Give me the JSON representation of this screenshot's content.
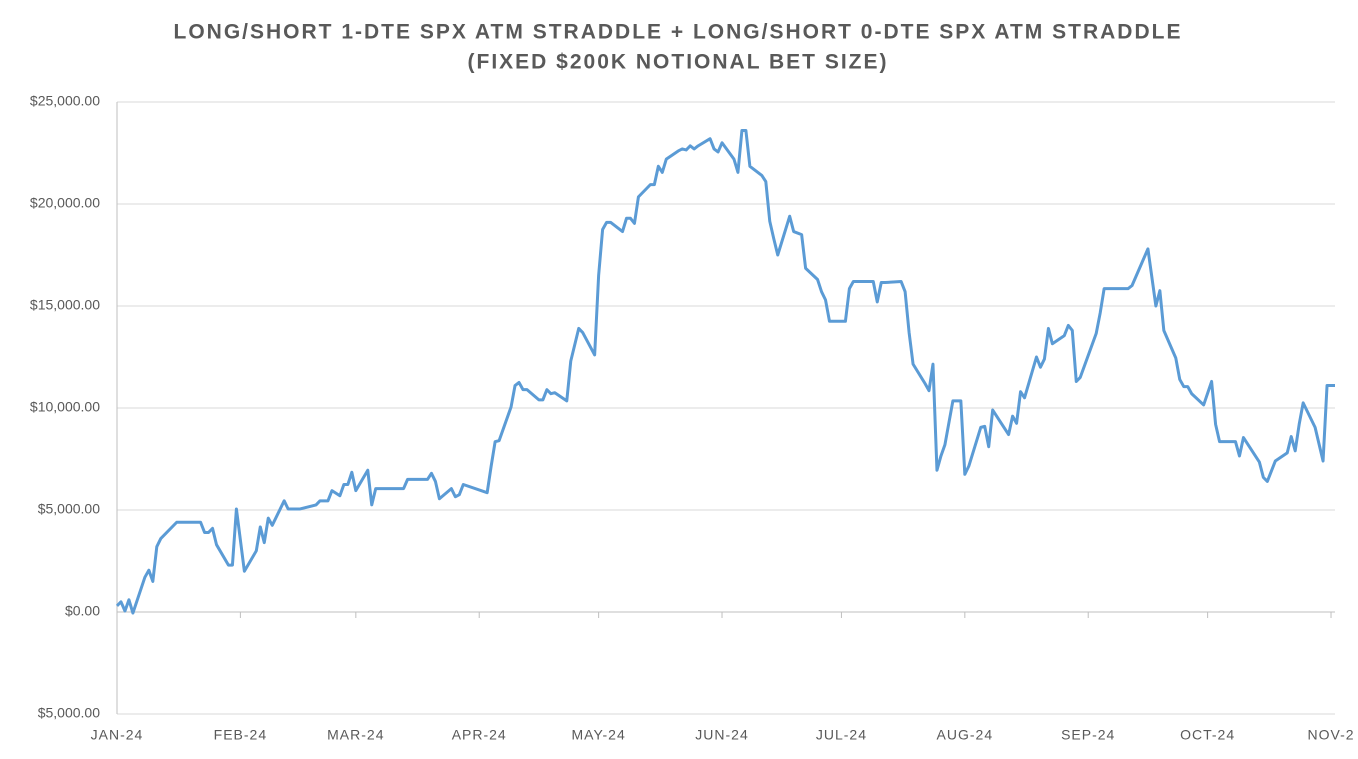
{
  "chart_data": {
    "type": "line",
    "title": "LONG/SHORT 1-DTE SPX ATM STRADDLE + LONG/SHORT 0-DTE SPX ATM STRADDLE",
    "subtitle": "(FIXED $200K NOTIONAL BET SIZE)",
    "color": "#5b9bd5",
    "negative_tick_color": "#c00000",
    "grid": true,
    "xlim": [
      0,
      306
    ],
    "xticks": [
      {
        "value": 0,
        "label": "JAN-24"
      },
      {
        "value": 31,
        "label": "FEB-24"
      },
      {
        "value": 60,
        "label": "MAR-24"
      },
      {
        "value": 91,
        "label": "APR-24"
      },
      {
        "value": 121,
        "label": "MAY-24"
      },
      {
        "value": 152,
        "label": "JUN-24"
      },
      {
        "value": 182,
        "label": "JUL-24"
      },
      {
        "value": 213,
        "label": "AUG-24"
      },
      {
        "value": 244,
        "label": "SEP-24"
      },
      {
        "value": 274,
        "label": "OCT-24"
      },
      {
        "value": 305,
        "label": "NOV-2"
      }
    ],
    "ylim": [
      -5000,
      25000
    ],
    "yticks": [
      {
        "value": -5000,
        "label": "$5,000.00"
      },
      {
        "value": 0,
        "label": "$0.00"
      },
      {
        "value": 5000,
        "label": "$5,000.00"
      },
      {
        "value": 10000,
        "label": "$10,000.00"
      },
      {
        "value": 15000,
        "label": "$15,000.00"
      },
      {
        "value": 20000,
        "label": "$20,000.00"
      },
      {
        "value": 25000,
        "label": "$25,000.00"
      }
    ],
    "x": [
      0,
      1,
      2,
      3,
      4,
      7,
      8,
      9,
      10,
      11,
      15,
      21,
      22,
      23,
      24,
      25,
      28,
      29,
      30,
      32,
      35,
      36,
      37,
      38,
      39,
      42,
      43,
      46,
      50,
      51,
      53,
      54,
      56,
      57,
      58,
      59,
      60,
      63,
      64,
      65,
      72,
      73,
      78,
      79,
      80,
      81,
      84,
      85,
      86,
      87,
      93,
      94,
      95,
      96,
      99,
      100,
      101,
      102,
      103,
      106,
      107,
      108,
      109,
      110,
      113,
      114,
      116,
      117,
      120,
      121,
      122,
      123,
      124,
      127,
      128,
      129,
      130,
      131,
      134,
      135,
      136,
      137,
      138,
      141,
      142,
      143,
      144,
      145,
      146,
      149,
      150,
      151,
      152,
      155,
      156,
      157,
      158,
      159,
      162,
      163,
      164,
      165,
      166,
      169,
      170,
      172,
      173,
      176,
      177,
      178,
      179,
      183,
      184,
      185,
      190,
      191,
      192,
      193,
      197,
      198,
      199,
      200,
      203,
      204,
      205,
      206,
      207,
      208,
      210,
      212,
      213,
      214,
      217,
      218,
      219,
      220,
      224,
      225,
      226,
      227,
      228,
      231,
      232,
      233,
      234,
      235,
      238,
      239,
      240,
      241,
      242,
      246,
      247,
      248,
      254,
      255,
      259,
      261,
      262,
      263,
      266,
      267,
      268,
      269,
      270,
      273,
      275,
      276,
      277,
      281,
      282,
      283,
      287,
      288,
      289,
      291,
      294,
      295,
      296,
      297,
      298,
      301,
      303,
      304,
      306
    ],
    "values": [
      300,
      500,
      50,
      600,
      -50,
      1700,
      2050,
      1500,
      3200,
      3600,
      4400,
      4400,
      3900,
      3900,
      4100,
      3300,
      2300,
      2300,
      5050,
      2000,
      3000,
      4170,
      3400,
      4600,
      4250,
      5450,
      5050,
      5050,
      5250,
      5450,
      5450,
      5950,
      5700,
      6250,
      6250,
      6850,
      5950,
      6950,
      5250,
      6050,
      6050,
      6500,
      6500,
      6800,
      6400,
      5550,
      6050,
      5650,
      5750,
      6250,
      5850,
      7150,
      8350,
      8400,
      10050,
      11100,
      11250,
      10900,
      10900,
      10400,
      10400,
      10900,
      10700,
      10750,
      10350,
      12300,
      13900,
      13700,
      12600,
      16500,
      18750,
      19100,
      19100,
      18650,
      19300,
      19300,
      19050,
      20350,
      20950,
      20950,
      21850,
      21550,
      22200,
      22600,
      22700,
      22650,
      22850,
      22700,
      22850,
      23200,
      22700,
      22550,
      23000,
      22200,
      21550,
      23600,
      23600,
      21850,
      21400,
      21100,
      19150,
      18300,
      17500,
      19400,
      18650,
      18500,
      16850,
      16300,
      15700,
      15300,
      14250,
      14250,
      15850,
      16200,
      16200,
      15200,
      16150,
      16150,
      16200,
      15700,
      13700,
      12150,
      11200,
      10850,
      12150,
      6950,
      7650,
      8200,
      10350,
      10350,
      6750,
      7150,
      9050,
      9100,
      8100,
      9900,
      8700,
      9600,
      9250,
      10800,
      10500,
      12500,
      12000,
      12400,
      13900,
      13150,
      13550,
      14050,
      13800,
      11300,
      11500,
      13650,
      14650,
      15850,
      15850,
      16000,
      17800,
      15000,
      15750,
      13800,
      12450,
      11400,
      11050,
      11050,
      10700,
      10150,
      11300,
      9200,
      8350,
      8350,
      7650,
      8550,
      7350,
      6600,
      6400,
      7400,
      7800,
      8600,
      7900,
      9200,
      10250,
      9050,
      7400,
      11100,
      11100
    ]
  }
}
